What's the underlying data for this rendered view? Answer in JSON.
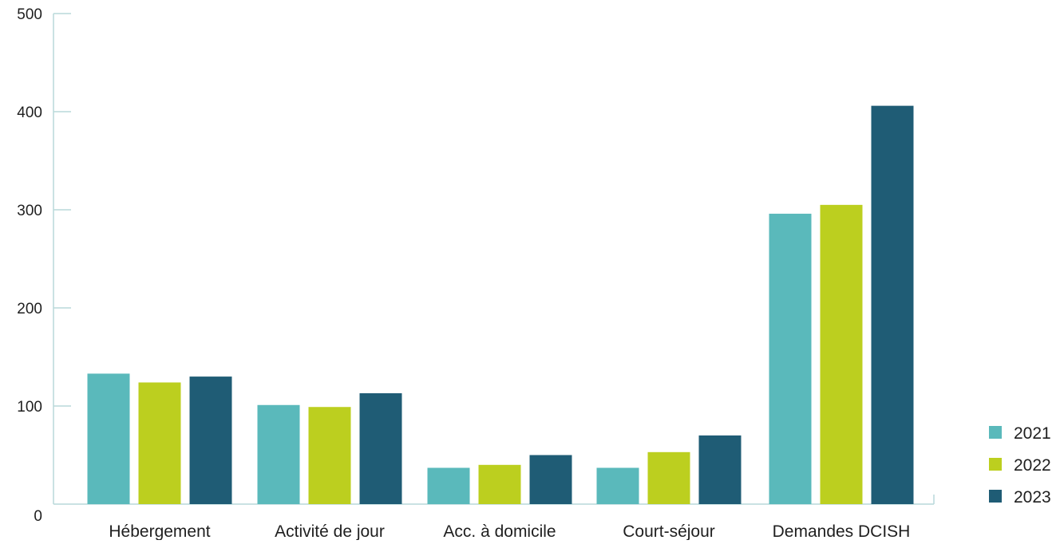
{
  "chart_data": {
    "type": "bar",
    "title": "",
    "xlabel": "",
    "ylabel": "",
    "categories": [
      "Hébergement",
      "Activité de jour",
      "Acc. à domicile",
      "Court-séjour",
      "Demandes DCISH"
    ],
    "series": [
      {
        "name": "2021",
        "color": "#5ab9bb",
        "values": [
          133,
          101,
          37,
          37,
          296
        ]
      },
      {
        "name": "2022",
        "color": "#bccf1f",
        "values": [
          124,
          99,
          40,
          53,
          305
        ]
      },
      {
        "name": "2023",
        "color": "#1f5c75",
        "values": [
          130,
          113,
          50,
          70,
          406
        ]
      }
    ],
    "ylim": [
      0,
      500
    ],
    "yticks": [
      0,
      100,
      200,
      300,
      400,
      500
    ],
    "grid": false,
    "legend_position": "bottom-right",
    "axis_color": "#b9d9da"
  }
}
